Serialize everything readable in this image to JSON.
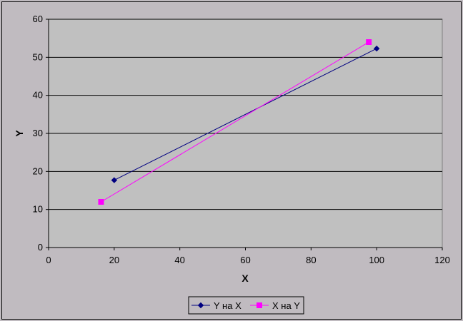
{
  "chart_data": {
    "type": "line",
    "title": "",
    "xlabel": "X",
    "ylabel": "Y",
    "xlim": [
      0,
      120
    ],
    "ylim": [
      0,
      60
    ],
    "xticks": [
      "0",
      "20",
      "40",
      "60",
      "80",
      "100",
      "120"
    ],
    "yticks": [
      "0",
      "10",
      "20",
      "30",
      "40",
      "50",
      "60"
    ],
    "grid": "horizontal",
    "legend_position": "bottom",
    "series": [
      {
        "name": "Y на X",
        "color": "#000080",
        "marker": "diamond",
        "points": [
          [
            20,
            17.7
          ],
          [
            100,
            52.3
          ]
        ]
      },
      {
        "name": "X на Y",
        "color": "#ff00ff",
        "marker": "square",
        "points": [
          [
            16,
            12
          ],
          [
            97.6,
            54
          ]
        ]
      }
    ]
  }
}
